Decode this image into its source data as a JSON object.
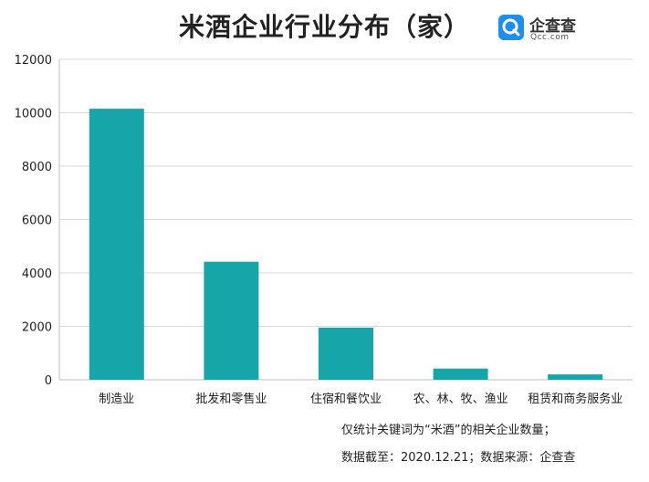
{
  "chart_data": {
    "type": "bar",
    "title": "米酒企业行业分布（家）",
    "categories": [
      "制造业",
      "批发和零售业",
      "住宿和餐饮业",
      "农、林、牧、渔业",
      "租赁和商务服务业"
    ],
    "values": [
      10150,
      4420,
      1950,
      420,
      200
    ],
    "ylim": [
      0,
      12000
    ],
    "yticks": [
      0,
      2000,
      4000,
      6000,
      8000,
      10000,
      12000
    ],
    "grid": true,
    "bar_color": "#16a5a8",
    "xlabel": "",
    "ylabel": ""
  },
  "brand": {
    "name": "企查查",
    "sub": "Qcc.com",
    "color": "#1f8ef1"
  },
  "notes": {
    "line1": "仅统计关键词为“米酒”的相关企业数量；",
    "line2": "数据截至：2020.12.21；数据来源：企查查"
  }
}
